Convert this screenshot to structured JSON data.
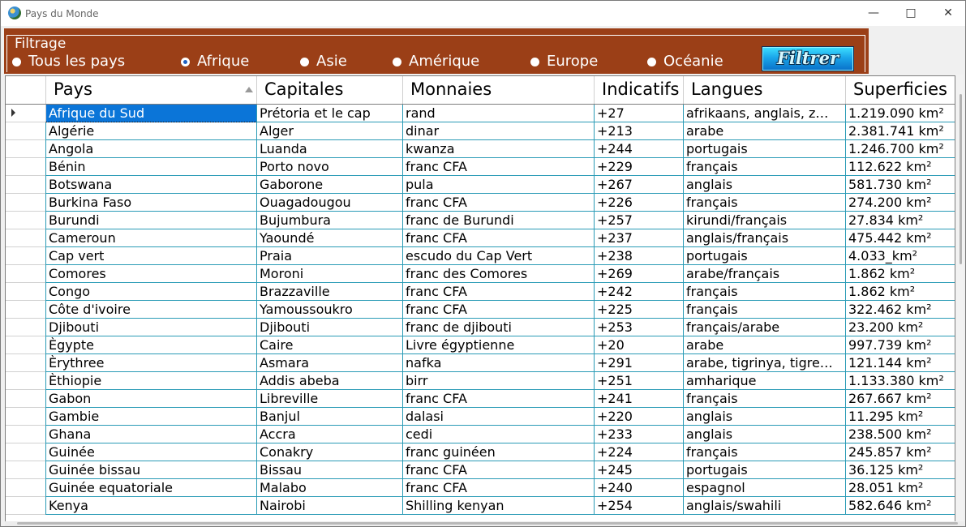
{
  "window": {
    "title": "Pays du Monde",
    "controls": [
      "—",
      "□",
      "✕"
    ]
  },
  "filter": {
    "legend": "Filtrage",
    "options": [
      {
        "label": "Tous les pays",
        "selected": false
      },
      {
        "label": "Afrique",
        "selected": true
      },
      {
        "label": "Asie",
        "selected": false
      },
      {
        "label": "Amérique",
        "selected": false
      },
      {
        "label": "Europe",
        "selected": false
      },
      {
        "label": "Océanie",
        "selected": false
      }
    ],
    "button": "Filtrer"
  },
  "grid": {
    "columns": [
      "Pays",
      "Capitales",
      "Monnaies",
      "Indicatifs",
      "Langues",
      "Superficies"
    ],
    "rows": [
      [
        "Afrique du Sud",
        "Prétoria et le cap",
        "rand",
        "+27",
        "afrikaans, anglais, z…",
        "1.219.090 km²"
      ],
      [
        "Algérie",
        "Alger",
        "dinar",
        "+213",
        "arabe",
        "2.381.741 km²"
      ],
      [
        "Angola",
        "Luanda",
        "kwanza",
        "+244",
        "portugais",
        "1.246.700 km²"
      ],
      [
        "Bénin",
        "Porto novo",
        "franc CFA",
        "+229",
        "français",
        "112.622 km²"
      ],
      [
        "Botswana",
        "Gaborone",
        "pula",
        "+267",
        "anglais",
        "581.730 km²"
      ],
      [
        "Burkina Faso",
        "Ouagadougou",
        "franc CFA",
        "+226",
        "français",
        "274.200 km²"
      ],
      [
        "Burundi",
        "Bujumbura",
        "franc de Burundi",
        "+257",
        "kirundi/français",
        "27.834 km²"
      ],
      [
        "Cameroun",
        "Yaoundé",
        "franc CFA",
        "+237",
        "anglais/français",
        "475.442 km²"
      ],
      [
        "Cap vert",
        "Praia",
        "escudo du Cap Vert",
        "+238",
        "portugais",
        "4.033_km²"
      ],
      [
        "Comores",
        "Moroni",
        "franc des Comores",
        "+269",
        "arabe/français",
        "1.862 km²"
      ],
      [
        "Congo",
        "Brazzaville",
        "franc CFA",
        "+242",
        "français",
        "1.862 km²"
      ],
      [
        "Côte d'ivoire",
        "Yamoussoukro",
        "franc CFA",
        "+225",
        "français",
        "322.462 km²"
      ],
      [
        "Djibouti",
        "Djibouti",
        "franc de djibouti",
        "+253",
        "français/arabe",
        "23.200 km²"
      ],
      [
        "Ègypte",
        "Caire",
        "Livre égyptienne",
        "+20",
        "arabe",
        "997.739 km²"
      ],
      [
        "Èrythree",
        "Asmara",
        "nafka",
        "+291",
        "arabe, tigrinya, tigre…",
        "121.144 km²"
      ],
      [
        "Èthiopie",
        "Addis abeba",
        "birr",
        "+251",
        "amharique",
        "1.133.380 km²"
      ],
      [
        "Gabon",
        "Libreville",
        "franc CFA",
        "+241",
        "français",
        "267.667 km²"
      ],
      [
        "Gambie",
        "Banjul",
        "dalasi",
        "+220",
        "anglais",
        "11.295 km²"
      ],
      [
        "Ghana",
        "Accra",
        "cedi",
        "+233",
        "anglais",
        "238.500 km²"
      ],
      [
        "Guinée",
        "Conakry",
        "franc guinéen",
        "+224",
        "français",
        "245.857 km²"
      ],
      [
        "Guinée bissau",
        "Bissau",
        "franc CFA",
        "+245",
        "portugais",
        "36.125 km²"
      ],
      [
        "Guinée equatoriale",
        "Malabo",
        "franc CFA",
        "+240",
        "espagnol",
        "28.051 km²"
      ],
      [
        "Kenya",
        "Nairobi",
        "Shilling kenyan",
        "+254",
        "anglais/swahili",
        "582.646 km²"
      ]
    ]
  },
  "colors": {
    "filter_background": "#9b3f17",
    "selection": "#0b75d8",
    "grid_lines": "#2a9bb6"
  }
}
